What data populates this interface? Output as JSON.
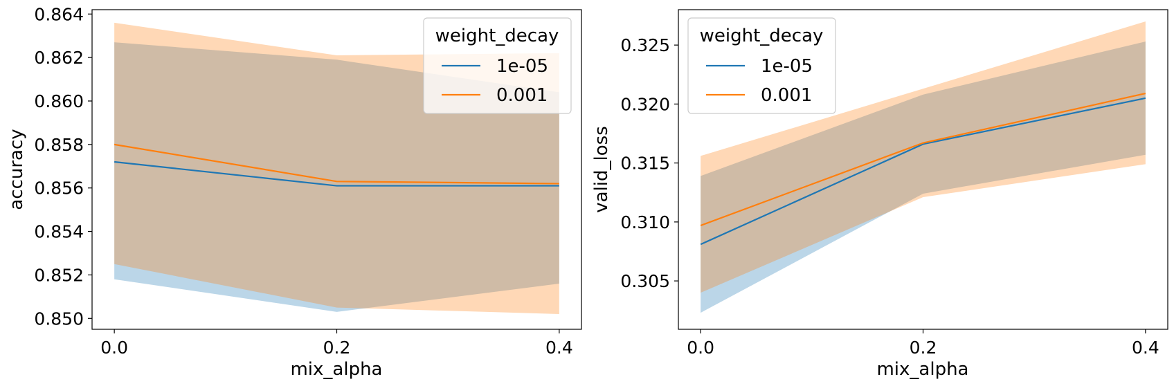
{
  "colors": {
    "series_1": "#1f77b4",
    "series_2": "#ff7f0e",
    "band_1": "#1f77b4",
    "band_2": "#ff7f0e"
  },
  "chart_data": [
    {
      "type": "line",
      "xlabel": "mix_alpha",
      "ylabel": "accuracy",
      "x": [
        0.0,
        0.2,
        0.4
      ],
      "x_ticks": [
        "0.0",
        "0.2",
        "0.4"
      ],
      "y_ticks": [
        "0.850",
        "0.852",
        "0.854",
        "0.856",
        "0.858",
        "0.860",
        "0.862",
        "0.864"
      ],
      "xlim": [
        -0.02,
        0.42
      ],
      "ylim": [
        0.8495,
        0.8642
      ],
      "grid": false,
      "legend": {
        "title": "weight_decay",
        "placement": "top-right",
        "entries": [
          "1e-05",
          "0.001"
        ]
      },
      "series": [
        {
          "name": "1e-05",
          "values": [
            0.8572,
            0.8561,
            0.8561
          ],
          "lower": [
            0.8518,
            0.8503,
            0.8516
          ],
          "upper": [
            0.8627,
            0.8619,
            0.8604
          ]
        },
        {
          "name": "0.001",
          "values": [
            0.858,
            0.8563,
            0.8562
          ],
          "lower": [
            0.8525,
            0.8505,
            0.8502
          ],
          "upper": [
            0.8636,
            0.8621,
            0.8622
          ]
        }
      ]
    },
    {
      "type": "line",
      "xlabel": "mix_alpha",
      "ylabel": "valid_loss",
      "x": [
        0.0,
        0.2,
        0.4
      ],
      "x_ticks": [
        "0.0",
        "0.2",
        "0.4"
      ],
      "y_ticks": [
        "0.305",
        "0.310",
        "0.315",
        "0.320",
        "0.325"
      ],
      "xlim": [
        -0.02,
        0.42
      ],
      "ylim": [
        0.3009,
        0.328
      ],
      "grid": false,
      "legend": {
        "title": "weight_decay",
        "placement": "top-left",
        "entries": [
          "1e-05",
          "0.001"
        ]
      },
      "series": [
        {
          "name": "1e-05",
          "values": [
            0.3081,
            0.3166,
            0.3205
          ],
          "lower": [
            0.3023,
            0.3124,
            0.3157
          ],
          "upper": [
            0.3139,
            0.3208,
            0.3253
          ]
        },
        {
          "name": "0.001",
          "values": [
            0.3097,
            0.3167,
            0.3209
          ],
          "lower": [
            0.304,
            0.3121,
            0.3149
          ],
          "upper": [
            0.3156,
            0.3213,
            0.327
          ]
        }
      ]
    }
  ]
}
